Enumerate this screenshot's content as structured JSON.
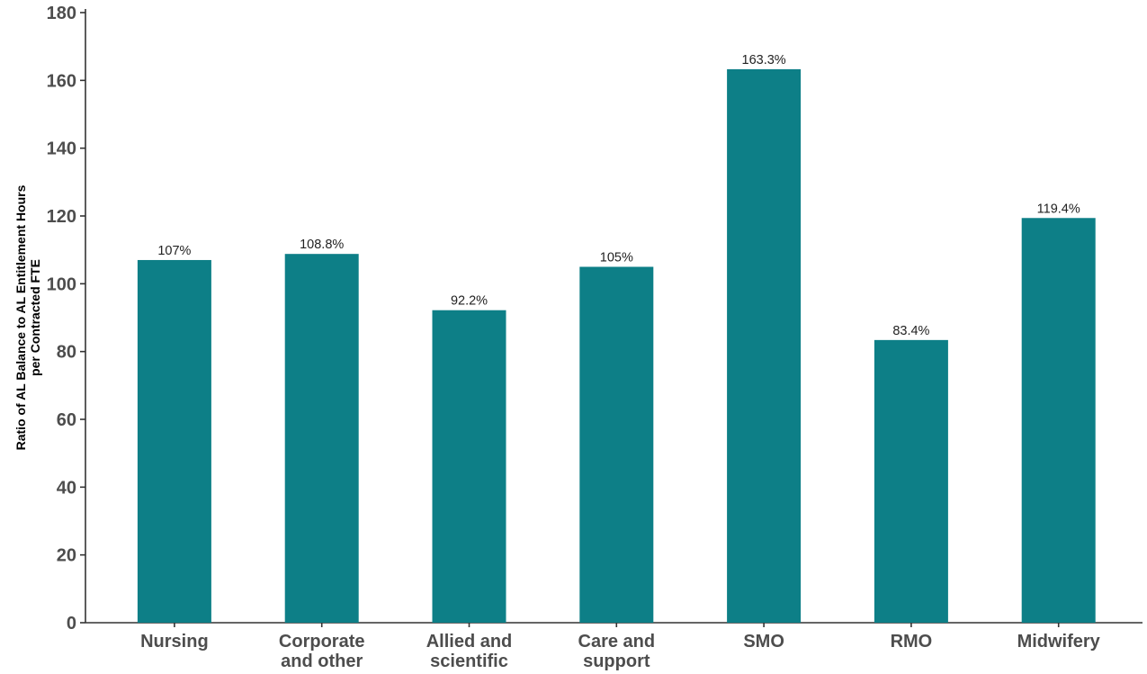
{
  "chart_data": {
    "type": "bar",
    "title": "",
    "xlabel": "",
    "ylabel_lines": [
      "Ratio of AL Balance to AL Entitlement Hours",
      "per Contracted FTE"
    ],
    "categories": [
      [
        "Nursing"
      ],
      [
        "Corporate",
        "and other"
      ],
      [
        "Allied and",
        "scientific"
      ],
      [
        "Care and",
        "support"
      ],
      [
        "SMO"
      ],
      [
        "RMO"
      ],
      [
        "Midwifery"
      ]
    ],
    "values": [
      107,
      108.8,
      92.2,
      105,
      163.3,
      83.4,
      119.4
    ],
    "data_labels": [
      "107%",
      "108.8%",
      "92.2%",
      "105%",
      "163.3%",
      "83.4%",
      "119.4%"
    ],
    "ylim": [
      0,
      180
    ],
    "yticks": [
      0,
      20,
      40,
      60,
      80,
      100,
      120,
      140,
      160,
      180
    ],
    "grid": false,
    "legend": "none",
    "bar_color": "#0d7f87",
    "axis_color": "#333333"
  }
}
